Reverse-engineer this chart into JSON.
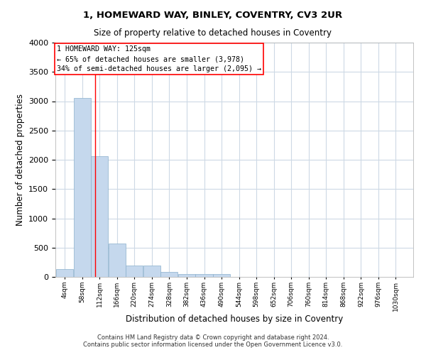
{
  "title1": "1, HOMEWARD WAY, BINLEY, COVENTRY, CV3 2UR",
  "title2": "Size of property relative to detached houses in Coventry",
  "xlabel": "Distribution of detached houses by size in Coventry",
  "ylabel": "Number of detached properties",
  "footer1": "Contains HM Land Registry data © Crown copyright and database right 2024.",
  "footer2": "Contains public sector information licensed under the Open Government Licence v3.0.",
  "annotation_line1": "1 HOMEWARD WAY: 125sqm",
  "annotation_line2": "← 65% of detached houses are smaller (3,978)",
  "annotation_line3": "34% of semi-detached houses are larger (2,095) →",
  "bar_color": "#c5d8ed",
  "bar_edge_color": "#8ab0cc",
  "red_line_x": 125,
  "bins": [
    4,
    58,
    112,
    166,
    220,
    274,
    328,
    382,
    436,
    490,
    544,
    598,
    652,
    706,
    760,
    814,
    868,
    922,
    976,
    1030,
    1084
  ],
  "values": [
    130,
    3060,
    2060,
    565,
    200,
    200,
    80,
    50,
    50,
    50,
    0,
    0,
    0,
    0,
    0,
    0,
    0,
    0,
    0,
    0
  ],
  "ylim": [
    0,
    4000
  ],
  "yticks": [
    0,
    500,
    1000,
    1500,
    2000,
    2500,
    3000,
    3500,
    4000
  ],
  "background_color": "#ffffff",
  "grid_color": "#cdd9e5"
}
